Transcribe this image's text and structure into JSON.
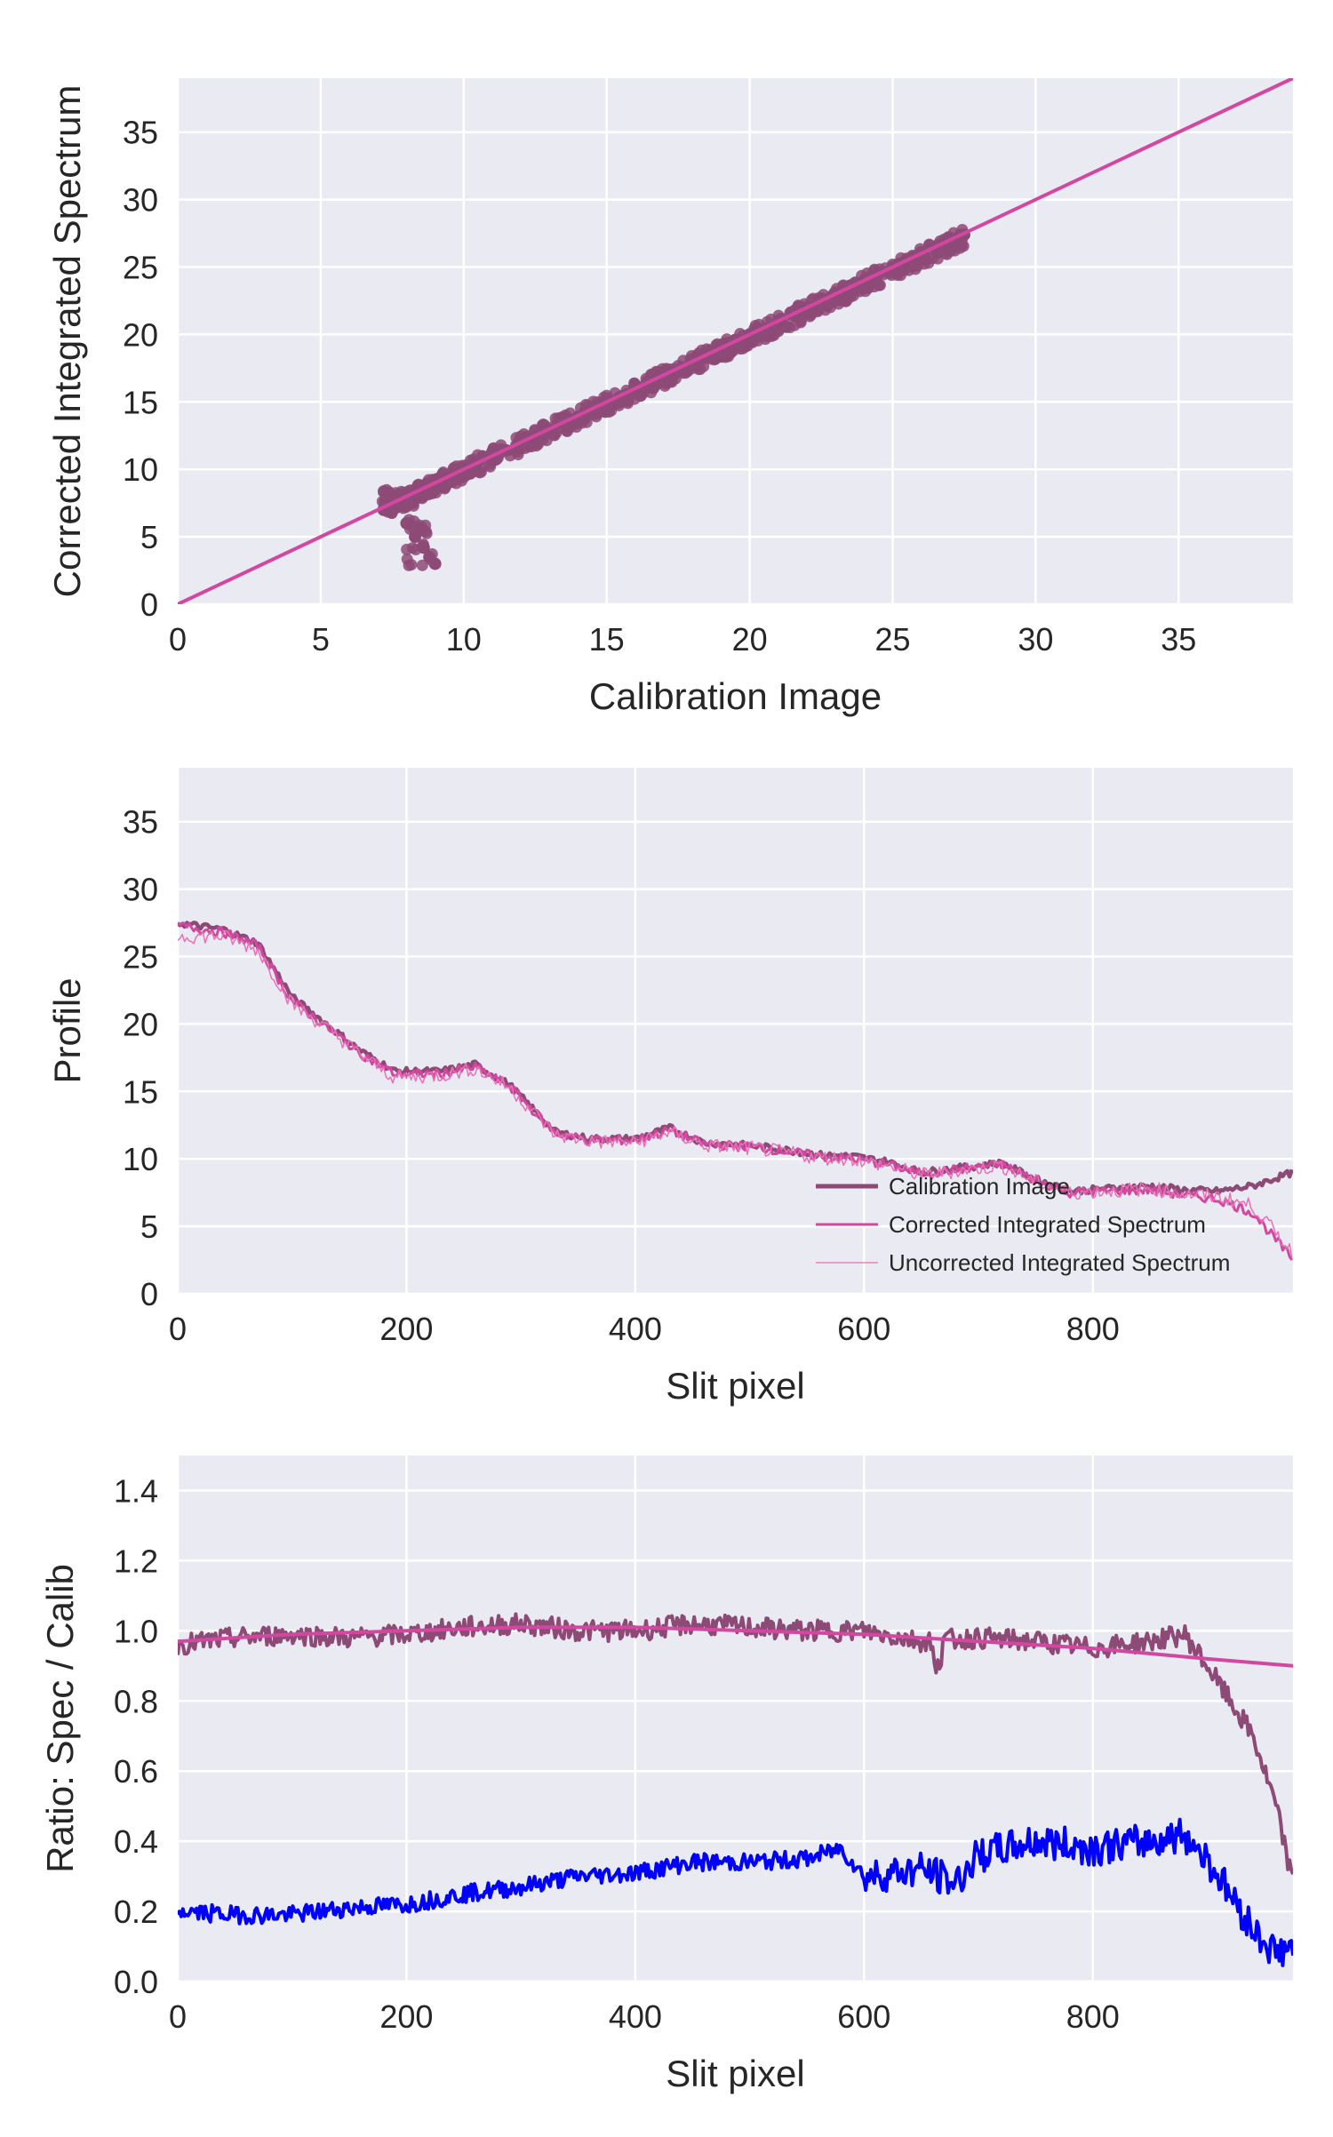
{
  "colors": {
    "panel_bg": "#EAEAF2",
    "grid": "#FFFFFF",
    "calibration": "#8E4A77",
    "corrected": "#D248A0",
    "uncorrected": "#E870B5",
    "ratio_uncorrected": "#0000FF"
  },
  "chart_data": [
    {
      "type": "scatter",
      "xlabel": "Calibration Image",
      "ylabel": "Corrected Integrated Spectrum",
      "xlim": [
        0,
        39
      ],
      "ylim": [
        0,
        39
      ],
      "xticks": [
        "0",
        "5",
        "10",
        "15",
        "20",
        "25",
        "30",
        "35"
      ],
      "yticks": [
        "0",
        "5",
        "10",
        "15",
        "20",
        "25",
        "30",
        "35"
      ],
      "grid": true,
      "series": [
        {
          "role": "points",
          "x": [
            7.2,
            7.5,
            7.8,
            8.0,
            8.2,
            8.4,
            8.6,
            8.8,
            9.0,
            8.9,
            9.2,
            9.5,
            10.0,
            10.5,
            11.0,
            11.5,
            12.0,
            12.5,
            13.0,
            13.5,
            14.0,
            14.5,
            15.0,
            15.5,
            16.0,
            16.5,
            17.0,
            17.5,
            18.0,
            18.5,
            19.0,
            19.5,
            20.0,
            20.5,
            21.0,
            21.5,
            22.0,
            22.5,
            23.0,
            23.5,
            24.0,
            24.5,
            25.0,
            25.5,
            26.0,
            26.5,
            27.0,
            27.5,
            8.0,
            8.3,
            8.6,
            8.8,
            9.0,
            8.5
          ],
          "y": [
            7.0,
            7.5,
            8.0,
            7.8,
            8.2,
            8.5,
            8.8,
            9.0,
            9.2,
            8.6,
            9.4,
            9.6,
            10.0,
            10.6,
            11.0,
            11.4,
            12.0,
            12.4,
            12.9,
            13.6,
            13.9,
            14.4,
            15.1,
            15.4,
            16.0,
            16.6,
            16.8,
            17.4,
            18.1,
            18.3,
            19.0,
            19.6,
            20.0,
            20.4,
            21.0,
            21.6,
            22.0,
            22.3,
            23.0,
            23.6,
            24.0,
            24.5,
            25.0,
            25.6,
            26.1,
            26.4,
            27.0,
            27.4,
            6.0,
            5.0,
            4.2,
            3.5,
            3.0,
            5.5
          ]
        },
        {
          "role": "fit-line",
          "x": [
            0,
            39
          ],
          "y": [
            0,
            39
          ]
        }
      ]
    },
    {
      "type": "line",
      "xlabel": "Slit pixel",
      "ylabel": "Profile",
      "xlim": [
        0,
        975
      ],
      "ylim": [
        0,
        39
      ],
      "xticks": [
        "0",
        "200",
        "400",
        "600",
        "800"
      ],
      "yticks": [
        "0",
        "5",
        "10",
        "15",
        "20",
        "25",
        "30",
        "35"
      ],
      "grid": true,
      "legend_position": "lower-right",
      "series": [
        {
          "name": "Calibration Image",
          "x": [
            0,
            40,
            70,
            100,
            130,
            160,
            190,
            230,
            260,
            290,
            330,
            360,
            400,
            430,
            460,
            500,
            530,
            560,
            590,
            620,
            650,
            680,
            720,
            750,
            780,
            810,
            850,
            880,
            910,
            940,
            975
          ],
          "y": [
            27.5,
            27.0,
            26.0,
            22.0,
            20.0,
            18.0,
            16.5,
            16.5,
            17.0,
            15.5,
            12.0,
            11.5,
            11.5,
            12.3,
            11.2,
            11.0,
            10.7,
            10.3,
            10.2,
            9.8,
            9.0,
            9.3,
            9.7,
            8.5,
            7.6,
            7.8,
            8.0,
            7.7,
            7.6,
            8.0,
            9.0
          ]
        },
        {
          "name": "Corrected Integrated Spectrum",
          "x": [
            0,
            40,
            70,
            100,
            130,
            160,
            190,
            230,
            260,
            290,
            330,
            360,
            400,
            430,
            460,
            500,
            530,
            560,
            590,
            620,
            650,
            680,
            720,
            750,
            780,
            810,
            850,
            880,
            910,
            940,
            960,
            975
          ],
          "y": [
            27.3,
            26.8,
            25.8,
            21.7,
            19.8,
            17.8,
            16.3,
            16.3,
            16.8,
            15.4,
            11.9,
            11.4,
            11.4,
            12.1,
            11.1,
            10.9,
            10.6,
            10.2,
            10.0,
            9.6,
            8.9,
            9.2,
            9.6,
            8.4,
            7.5,
            7.6,
            7.7,
            7.3,
            7.0,
            6.0,
            4.0,
            2.5
          ]
        },
        {
          "name": "Uncorrected Integrated Spectrum",
          "x": [
            0,
            40,
            70,
            100,
            130,
            160,
            190,
            230,
            260,
            290,
            330,
            360,
            400,
            430,
            460,
            500,
            530,
            560,
            590,
            620,
            650,
            680,
            720,
            750,
            780,
            810,
            850,
            880,
            910,
            940,
            960,
            975
          ],
          "y": [
            26.5,
            26.5,
            25.5,
            21.5,
            19.7,
            17.7,
            16.0,
            16.2,
            16.7,
            15.3,
            11.8,
            11.3,
            11.2,
            12.0,
            11.0,
            10.8,
            10.5,
            10.1,
            10.0,
            9.5,
            8.8,
            9.1,
            9.5,
            8.3,
            7.5,
            7.6,
            7.8,
            7.4,
            7.2,
            6.5,
            4.5,
            3.0
          ]
        }
      ]
    },
    {
      "type": "line",
      "xlabel": "Slit pixel",
      "ylabel": "Ratio: Spec / Calib",
      "xlim": [
        0,
        975
      ],
      "ylim": [
        0,
        1.5
      ],
      "xticks": [
        "0",
        "200",
        "400",
        "600",
        "800"
      ],
      "yticks": [
        "0.0",
        "0.2",
        "0.4",
        "0.6",
        "0.8",
        "1.0",
        "1.2",
        "1.4"
      ],
      "grid": true,
      "series": [
        {
          "role": "corrected-ratio",
          "x": [
            0,
            50,
            100,
            150,
            200,
            250,
            300,
            350,
            400,
            450,
            500,
            550,
            600,
            650,
            700,
            750,
            800,
            850,
            880,
            900,
            920,
            940,
            960,
            975
          ],
          "y": [
            0.96,
            0.98,
            0.99,
            0.98,
            0.99,
            1.01,
            1.02,
            1.0,
            1.0,
            1.02,
            1.01,
            1.0,
            1.0,
            0.97,
            0.98,
            0.97,
            0.95,
            0.97,
            0.99,
            0.9,
            0.8,
            0.7,
            0.5,
            0.28
          ]
        },
        {
          "role": "fit-line",
          "x": [
            0,
            100,
            200,
            300,
            400,
            500,
            600,
            700,
            800,
            900,
            975
          ],
          "y": [
            0.97,
            0.99,
            1.0,
            1.01,
            1.01,
            1.0,
            0.99,
            0.97,
            0.95,
            0.92,
            0.9
          ]
        },
        {
          "role": "uncorrected-ratio",
          "x": [
            0,
            50,
            100,
            150,
            200,
            250,
            300,
            350,
            400,
            450,
            500,
            550,
            580,
            600,
            650,
            680,
            700,
            750,
            800,
            850,
            880,
            900,
            920,
            940,
            960,
            975
          ],
          "y": [
            0.2,
            0.19,
            0.19,
            0.21,
            0.22,
            0.25,
            0.27,
            0.3,
            0.31,
            0.34,
            0.34,
            0.35,
            0.38,
            0.3,
            0.32,
            0.28,
            0.36,
            0.4,
            0.38,
            0.4,
            0.42,
            0.35,
            0.25,
            0.15,
            0.08,
            0.1
          ]
        }
      ]
    }
  ]
}
